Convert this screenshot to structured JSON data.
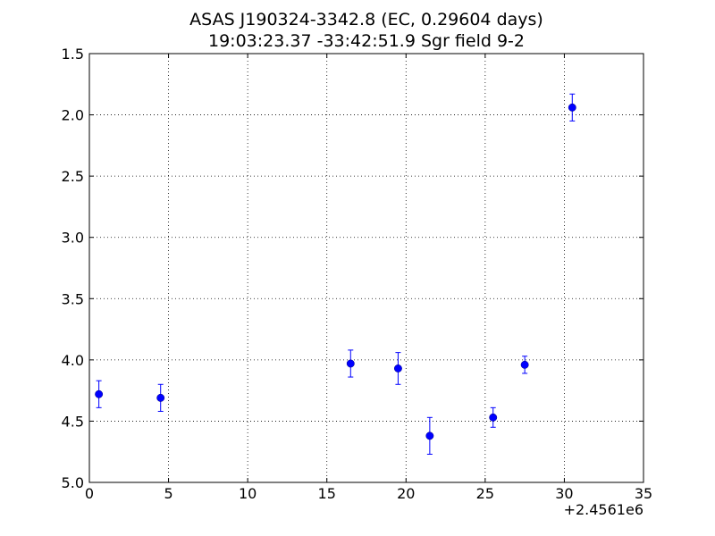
{
  "chart_data": {
    "type": "scatter",
    "title": "ASAS J190324-3342.8 (EC, 0.29604 days)",
    "subtitle": "19:03:23.37 -33:42:51.9 Sgr field 9-2",
    "xlabel": "",
    "ylabel": "",
    "x_offset_label": "+2.4561e6",
    "xlim": [
      0,
      35
    ],
    "ylim": [
      1.5,
      5.0
    ],
    "y_inverted": true,
    "grid": true,
    "x_ticks": [
      "0",
      "5",
      "10",
      "15",
      "20",
      "25",
      "30",
      "35"
    ],
    "y_ticks": [
      "1.5",
      "2.0",
      "2.5",
      "3.0",
      "3.5",
      "4.0",
      "4.5",
      "5.0"
    ],
    "marker_color": "#0000ff",
    "series": [
      {
        "points": [
          {
            "x": 0.6,
            "y": 4.28,
            "err": 0.11
          },
          {
            "x": 4.5,
            "y": 4.31,
            "err": 0.11
          },
          {
            "x": 16.5,
            "y": 4.03,
            "err": 0.11
          },
          {
            "x": 19.5,
            "y": 4.07,
            "err": 0.13
          },
          {
            "x": 21.5,
            "y": 4.62,
            "err": 0.15
          },
          {
            "x": 25.5,
            "y": 4.47,
            "err": 0.08
          },
          {
            "x": 27.5,
            "y": 4.04,
            "err": 0.07
          },
          {
            "x": 30.5,
            "y": 1.94,
            "err": 0.11
          }
        ]
      }
    ]
  }
}
